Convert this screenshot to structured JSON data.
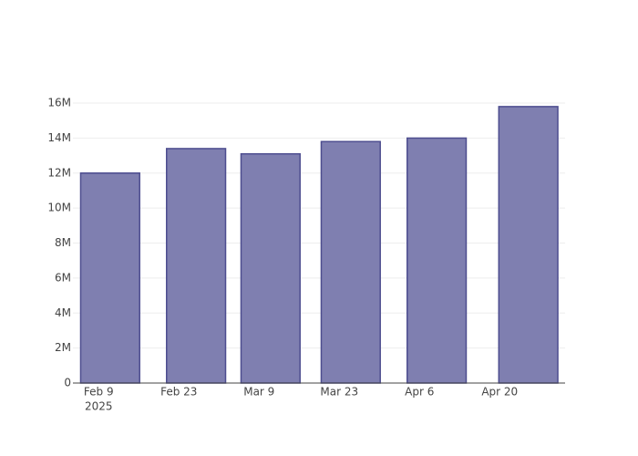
{
  "chart_data": {
    "type": "bar",
    "x": [
      "2025-02-11",
      "2025-02-26",
      "2025-03-11",
      "2025-03-25",
      "2025-04-09",
      "2025-04-25"
    ],
    "values": [
      12000000,
      13400000,
      13100000,
      13800000,
      14000000,
      15800000
    ],
    "color": "#7f7fb0",
    "line_color": "#4d4d8f",
    "xlim": [
      "2025-02-04T12:00",
      "2025-05-01T10:00"
    ],
    "xticks": [
      {
        "value": "2025-02-09",
        "label": "Feb 9",
        "year": "2025"
      },
      {
        "value": "2025-02-23",
        "label": "Feb 23"
      },
      {
        "value": "2025-03-09",
        "label": "Mar 9"
      },
      {
        "value": "2025-03-23",
        "label": "Mar 23"
      },
      {
        "value": "2025-04-06",
        "label": "Apr 6"
      },
      {
        "value": "2025-04-20",
        "label": "Apr 20"
      }
    ],
    "ylim": [
      0,
      16680000
    ],
    "yticks": [
      0,
      {
        "value": 2000000,
        "label": "2M"
      },
      {
        "value": 4000000,
        "label": "4M"
      },
      {
        "value": 6000000,
        "label": "6M"
      },
      {
        "value": 8000000,
        "label": "8M"
      },
      {
        "value": 10000000,
        "label": "10M"
      },
      {
        "value": 12000000,
        "label": "12M"
      },
      {
        "value": 14000000,
        "label": "14M"
      },
      {
        "value": 16000000,
        "label": "16M"
      }
    ],
    "grid": true
  }
}
